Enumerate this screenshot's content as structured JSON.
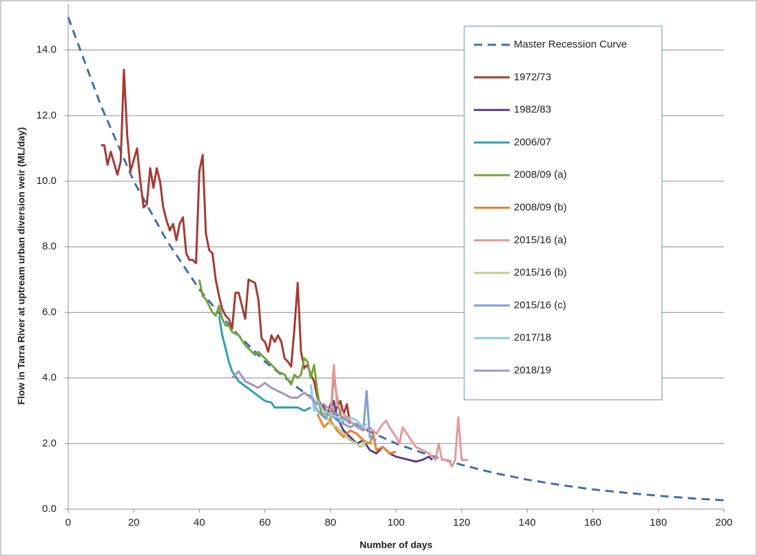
{
  "chart_data": {
    "type": "line",
    "x_label": "Number of days",
    "y_label": "Flow in Tarra River at uptream urban diversion weir (ML/day)",
    "xlim": [
      0,
      200
    ],
    "ylim": [
      0,
      15.4
    ],
    "xticks": [
      0,
      20,
      40,
      60,
      80,
      100,
      120,
      140,
      160,
      180,
      200
    ],
    "yticks": [
      {
        "value": 0,
        "label": "0.0"
      },
      {
        "value": 2,
        "label": "2.0"
      },
      {
        "value": 4,
        "label": "4.0"
      },
      {
        "value": 6,
        "label": "6.0"
      },
      {
        "value": 8,
        "label": "8.0"
      },
      {
        "value": 10,
        "label": "10.0"
      },
      {
        "value": 12,
        "label": "12.0"
      },
      {
        "value": 14,
        "label": "14.0"
      }
    ],
    "grid": true,
    "legend": "upper right",
    "series": [
      {
        "name": "Master Recession Curve",
        "color": "#3f6ea8",
        "line_style": "dashed",
        "x": [
          0,
          10,
          20,
          30,
          40,
          50,
          60,
          70,
          80,
          90,
          100,
          110,
          120,
          130,
          140,
          150,
          160,
          170,
          180,
          190,
          200
        ],
        "values": [
          15.0,
          12.3,
          10.0,
          8.2,
          6.7,
          5.5,
          4.5,
          3.7,
          3.0,
          2.46,
          2.0,
          1.65,
          1.35,
          1.1,
          0.9,
          0.74,
          0.6,
          0.5,
          0.41,
          0.33,
          0.27
        ]
      },
      {
        "name": "1972/73",
        "color": "#a33a34",
        "line_style": "solid",
        "x": [
          10,
          11,
          12,
          13,
          15,
          16,
          17,
          18,
          19,
          21,
          22,
          23,
          24,
          25,
          26,
          27,
          28,
          29,
          30,
          31,
          32,
          33,
          34,
          35,
          36,
          37,
          38,
          39,
          40,
          41,
          42,
          43,
          44,
          45,
          46,
          47,
          48,
          49,
          50,
          51,
          52,
          53,
          54,
          55,
          56,
          57,
          58,
          59,
          60,
          61,
          62,
          63,
          64,
          65,
          66,
          67,
          68,
          69,
          70,
          71,
          72,
          73,
          74,
          75,
          76,
          77,
          78,
          79,
          80,
          81,
          82,
          83,
          84,
          85,
          86
        ],
        "values": [
          11.1,
          11.1,
          10.5,
          10.9,
          10.2,
          10.6,
          13.4,
          11.4,
          10.3,
          11.0,
          10.0,
          9.2,
          9.3,
          10.4,
          9.8,
          10.4,
          10.0,
          9.2,
          8.8,
          8.5,
          8.7,
          8.2,
          8.7,
          8.9,
          7.8,
          7.6,
          7.6,
          7.5,
          10.3,
          10.8,
          8.4,
          7.9,
          7.8,
          7.0,
          6.5,
          6.1,
          5.9,
          5.8,
          5.5,
          6.6,
          6.6,
          6.2,
          5.8,
          7.0,
          6.95,
          6.9,
          6.4,
          5.2,
          5.1,
          4.8,
          5.3,
          5.1,
          5.3,
          5.1,
          4.6,
          4.5,
          4.35,
          5.5,
          6.9,
          4.8,
          4.3,
          4.4,
          4.1,
          3.9,
          3.4,
          3.2,
          3.1,
          2.9,
          3.2,
          2.9,
          3.1,
          3.3,
          2.9,
          3.2,
          2.6
        ]
      },
      {
        "name": "1982/83",
        "color": "#5b3f8c",
        "line_style": "solid",
        "x": [
          78,
          80,
          81,
          82,
          84,
          86,
          88,
          90,
          92,
          94,
          96,
          98,
          100,
          102,
          104,
          106,
          108,
          110,
          111
        ],
        "values": [
          2.9,
          3.0,
          3.3,
          2.8,
          2.4,
          2.2,
          2.0,
          2.1,
          1.8,
          1.7,
          1.9,
          1.7,
          1.6,
          1.55,
          1.5,
          1.45,
          1.5,
          1.6,
          1.5
        ]
      },
      {
        "name": "2006/07",
        "color": "#2e9fb0",
        "line_style": "solid",
        "x": [
          46,
          47,
          48,
          49,
          50,
          52,
          54,
          56,
          58,
          60,
          62,
          63,
          66,
          70,
          72,
          74
        ],
        "values": [
          5.9,
          5.3,
          4.9,
          4.5,
          4.2,
          3.9,
          3.75,
          3.6,
          3.45,
          3.3,
          3.25,
          3.1,
          3.1,
          3.1,
          3.0,
          3.1
        ]
      },
      {
        "name": "2008/09 (a)",
        "color": "#77a33a",
        "line_style": "solid",
        "x": [
          40,
          41,
          42,
          44,
          45,
          46,
          47,
          48,
          49,
          50,
          52,
          54,
          56,
          57,
          58,
          60,
          62,
          64,
          66,
          68,
          69,
          70,
          71,
          72,
          73,
          74,
          75,
          76,
          77,
          78,
          80,
          81,
          82,
          83,
          84
        ],
        "values": [
          7.0,
          6.5,
          6.4,
          6.0,
          5.9,
          6.2,
          5.8,
          5.6,
          5.6,
          5.4,
          5.3,
          5.0,
          4.8,
          4.7,
          4.8,
          4.6,
          4.4,
          4.2,
          4.1,
          3.8,
          4.1,
          4.0,
          4.1,
          4.6,
          4.5,
          4.0,
          4.4,
          3.6,
          3.0,
          2.8,
          2.7,
          4.1,
          3.4,
          2.9,
          2.6
        ]
      },
      {
        "name": "2008/09 (b)",
        "color": "#f07e28",
        "line_style": "solid",
        "x": [
          76,
          78,
          80,
          82,
          84,
          86,
          88,
          90,
          92,
          93,
          94,
          96,
          98,
          100
        ],
        "values": [
          2.9,
          2.5,
          2.7,
          2.4,
          2.2,
          2.4,
          2.3,
          2.1,
          2.0,
          2.3,
          1.8,
          1.9,
          1.7,
          1.75
        ]
      },
      {
        "name": "2015/16 (a)",
        "color": "#e3999a",
        "line_style": "solid",
        "x": [
          80,
          81,
          82,
          84,
          86,
          88,
          90,
          92,
          94,
          96,
          97,
          98,
          100,
          101,
          102,
          104,
          106,
          108,
          110,
          112,
          113,
          114,
          116,
          117,
          118,
          119,
          120,
          122
        ],
        "values": [
          2.8,
          4.4,
          3.2,
          2.9,
          2.7,
          2.5,
          2.4,
          2.5,
          2.3,
          2.6,
          2.7,
          2.5,
          2.2,
          2.0,
          2.5,
          2.2,
          1.9,
          1.8,
          1.7,
          1.5,
          2.0,
          1.5,
          1.5,
          1.3,
          1.5,
          2.8,
          1.5,
          1.5
        ]
      },
      {
        "name": "2015/16 (b)",
        "color": "#b6d08a",
        "line_style": "solid",
        "x": [
          78,
          80,
          82,
          84,
          86,
          88,
          89,
          90,
          91
        ],
        "values": [
          3.0,
          2.6,
          2.5,
          2.3,
          2.1,
          2.0,
          1.9,
          1.95,
          2.1
        ]
      },
      {
        "name": "2015/16 (c)",
        "color": "#7f9fd6",
        "line_style": "solid",
        "x": [
          74,
          76,
          78,
          80,
          82,
          84,
          86,
          88,
          90,
          91,
          92,
          94
        ],
        "values": [
          3.5,
          3.0,
          2.8,
          2.9,
          2.7,
          2.6,
          2.5,
          2.6,
          2.4,
          3.6,
          2.2,
          2.1
        ]
      },
      {
        "name": "2017/18",
        "color": "#8dcdd9",
        "line_style": "solid",
        "x": [
          74,
          75,
          76,
          78,
          80,
          82,
          84,
          86,
          88,
          90,
          91
        ],
        "values": [
          3.8,
          3.0,
          3.3,
          3.0,
          2.9,
          2.8,
          2.7,
          2.8,
          2.7,
          2.5,
          2.6
        ]
      },
      {
        "name": "2018/19",
        "color": "#a394c2",
        "line_style": "solid",
        "x": [
          50,
          52,
          54,
          56,
          58,
          60,
          62,
          64,
          66,
          68,
          70,
          72,
          74,
          76,
          78,
          80,
          82,
          84,
          86
        ],
        "values": [
          4.0,
          4.2,
          3.9,
          3.8,
          3.7,
          3.85,
          3.7,
          3.6,
          3.5,
          3.4,
          3.4,
          3.55,
          3.4,
          3.2,
          3.2,
          3.0,
          2.9,
          2.8,
          2.6
        ]
      }
    ]
  }
}
